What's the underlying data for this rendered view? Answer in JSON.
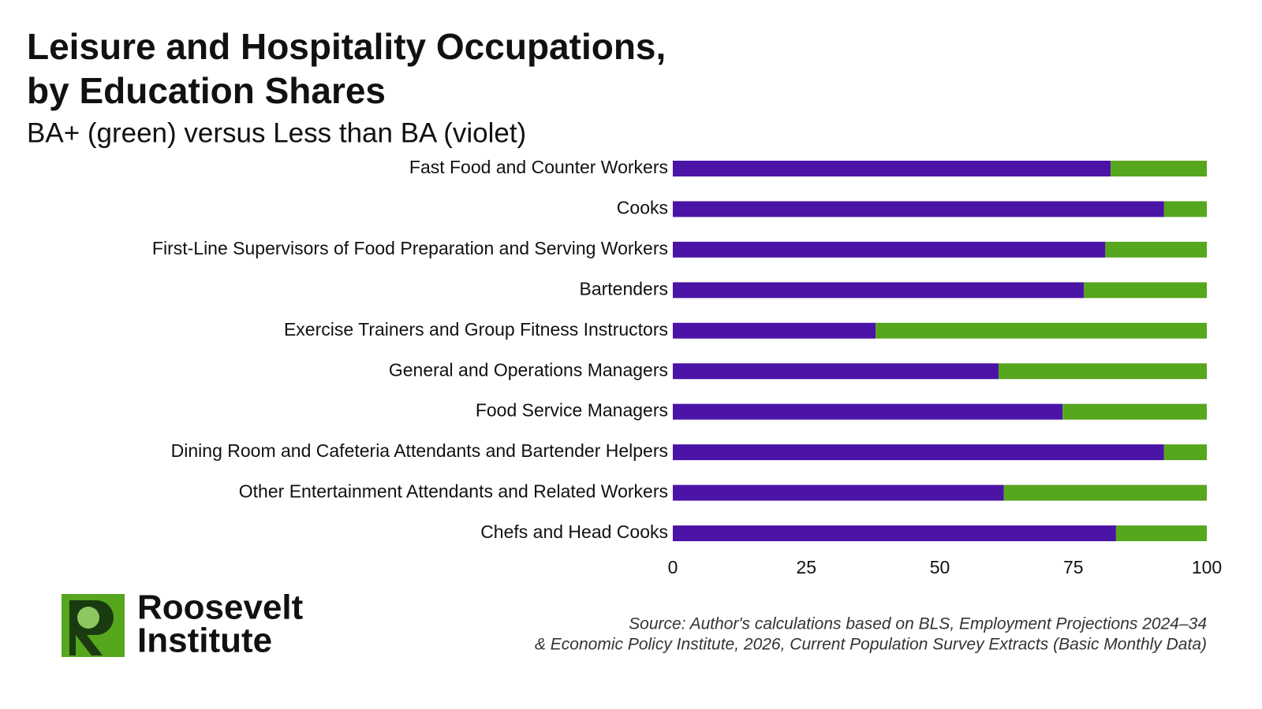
{
  "chart_data": {
    "type": "stacked_barh",
    "title_lines": [
      "Leisure and Hospitality Occupations,",
      "by Education Shares"
    ],
    "subtitle": "BA+ (green) versus Less than BA (violet)",
    "categories": [
      "Fast Food and Counter Workers",
      "Cooks",
      "First-Line Supervisors of Food Preparation and Serving Workers",
      "Bartenders",
      "Exercise Trainers and Group Fitness Instructors",
      "General and Operations Managers",
      "Food Service Managers",
      "Dining Room and Cafeteria Attendants and Bartender Helpers",
      "Other Entertainment Attendants and Related Workers",
      "Chefs and Head Cooks"
    ],
    "series": [
      {
        "color": "#4b14a6",
        "values": [
          82,
          92,
          81,
          77,
          38,
          61,
          73,
          92,
          62,
          83
        ]
      },
      {
        "color": "#56a61e",
        "values": [
          18,
          8,
          19,
          23,
          62,
          39,
          27,
          8,
          38,
          17
        ]
      }
    ],
    "xlim": [
      0,
      100
    ],
    "xticks": [
      0,
      25,
      50,
      75,
      100
    ],
    "source_lines": [
      "Source: Author's calculations based on BLS, Employment Projections 2024–34",
      "& Economic Policy Institute, 2026, Current Population Survey Extracts (Basic Monthly Data)"
    ],
    "logo_lines": [
      "Roosevelt",
      "Institute"
    ]
  }
}
